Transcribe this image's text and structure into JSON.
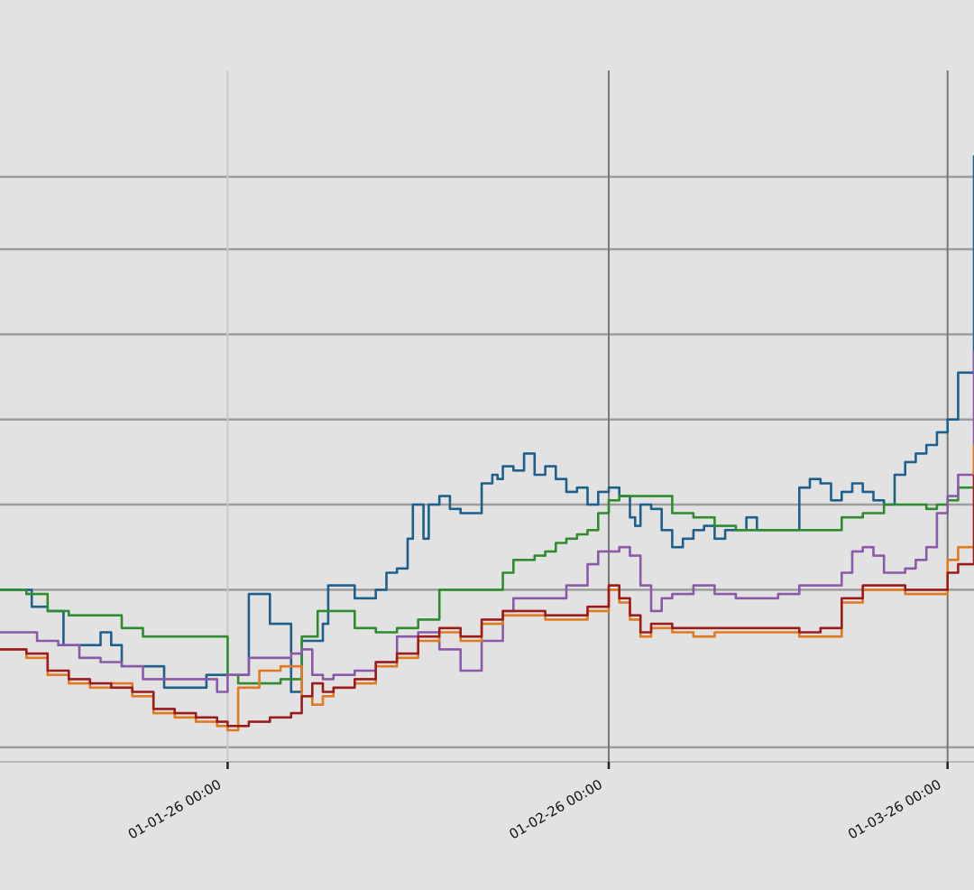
{
  "chart_data": {
    "type": "line",
    "title": "",
    "xlabel": "",
    "ylabel": "",
    "grid": true,
    "legend": "none",
    "x_unit": "day",
    "x_range": [
      -21.5,
      70.5
    ],
    "y_range": [
      0,
      8.1
    ],
    "x_ticks": [
      {
        "x": 0,
        "label": "01-01-26 00:00"
      },
      {
        "x": 36,
        "label": "01-02-26 00:00"
      },
      {
        "x": 68,
        "label": "01-03-26 00:00"
      }
    ],
    "y_gridlines": [
      0.15,
      2.0,
      3.0,
      4.0,
      5.0,
      6.0,
      6.85
    ],
    "y_tick_labels": [],
    "series": [
      {
        "name": "blue",
        "color": "#1f5f8b",
        "x": [
          -21.5,
          -19,
          -18.5,
          -17,
          -15.5,
          -13,
          -12,
          -11,
          -10,
          -8,
          -7,
          -6,
          -4,
          -2,
          -1,
          0.5,
          2,
          3,
          4,
          6,
          7,
          8,
          9,
          9.5,
          11,
          12,
          14,
          15,
          16,
          17,
          17.5,
          18.5,
          19,
          20,
          21,
          22,
          24,
          25,
          25.5,
          26,
          27,
          28,
          29,
          30,
          31,
          32,
          33,
          34,
          35,
          36,
          37,
          38,
          38.5,
          39,
          40,
          41,
          42,
          43,
          44,
          45,
          46,
          47,
          48,
          49,
          50,
          51,
          53,
          54,
          55,
          56,
          57,
          58,
          59,
          60,
          61,
          62,
          63,
          64,
          65,
          66,
          67,
          68,
          69,
          70.5
        ],
        "y": [
          2.0,
          2.0,
          1.8,
          1.75,
          1.35,
          1.35,
          1.5,
          1.35,
          1.1,
          1.1,
          1.1,
          0.85,
          0.85,
          1.0,
          1.0,
          1.0,
          1.95,
          1.95,
          1.6,
          0.8,
          1.4,
          1.4,
          1.6,
          2.05,
          2.05,
          1.9,
          2.0,
          2.2,
          2.25,
          2.6,
          3.0,
          2.6,
          3.0,
          3.1,
          2.95,
          2.9,
          3.25,
          3.35,
          3.3,
          3.45,
          3.4,
          3.6,
          3.35,
          3.45,
          3.3,
          3.15,
          3.2,
          3.0,
          3.15,
          3.2,
          3.1,
          2.85,
          2.75,
          3.0,
          2.95,
          2.7,
          2.5,
          2.6,
          2.7,
          2.75,
          2.6,
          2.7,
          2.7,
          2.85,
          2.7,
          2.7,
          2.7,
          3.2,
          3.3,
          3.25,
          3.05,
          3.15,
          3.25,
          3.15,
          3.05,
          3.0,
          3.35,
          3.5,
          3.6,
          3.7,
          3.85,
          4.0,
          4.55,
          7.1
        ]
      },
      {
        "name": "green",
        "color": "#2e8b2e",
        "x": [
          -21.5,
          -20,
          -19,
          -17,
          -15,
          -12,
          -10,
          -8,
          -6,
          -4,
          -2,
          0,
          1,
          3,
          5,
          7,
          8.5,
          10,
          12,
          14,
          16,
          18,
          20,
          22,
          25,
          26,
          27,
          29,
          30,
          31,
          32,
          33,
          34,
          35,
          36,
          37,
          38,
          40,
          42,
          44,
          46,
          48,
          50,
          52,
          54,
          56,
          58,
          60,
          62,
          64,
          65,
          66,
          67,
          68,
          69,
          70.5
        ],
        "y": [
          2.0,
          2.0,
          1.95,
          1.75,
          1.7,
          1.7,
          1.55,
          1.45,
          1.45,
          1.45,
          1.45,
          1.0,
          0.9,
          0.9,
          0.95,
          1.45,
          1.75,
          1.75,
          1.55,
          1.5,
          1.55,
          1.65,
          2.0,
          2.0,
          2.0,
          2.2,
          2.35,
          2.4,
          2.45,
          2.55,
          2.6,
          2.65,
          2.7,
          2.9,
          3.05,
          3.1,
          3.1,
          3.1,
          2.9,
          2.85,
          2.75,
          2.7,
          2.7,
          2.7,
          2.7,
          2.7,
          2.85,
          2.9,
          3.0,
          3.0,
          3.0,
          2.95,
          3.0,
          3.05,
          3.2,
          3.2
        ]
      },
      {
        "name": "purple",
        "color": "#8a5aa8",
        "x": [
          -21.5,
          -19,
          -18,
          -16,
          -14,
          -12,
          -10,
          -8,
          -6,
          -4,
          -2,
          -1,
          0,
          2,
          4,
          6,
          7,
          8,
          9,
          10,
          12,
          14,
          16,
          18,
          20,
          22,
          24,
          26,
          27,
          28,
          30,
          32,
          34,
          35,
          36,
          37,
          38,
          39,
          40,
          41,
          42,
          44,
          46,
          48,
          50,
          52,
          54,
          56,
          58,
          59,
          60,
          61,
          62,
          64,
          65,
          66,
          67,
          68,
          69,
          70.5
        ],
        "y": [
          1.5,
          1.5,
          1.4,
          1.35,
          1.2,
          1.15,
          1.1,
          0.95,
          0.95,
          0.95,
          0.95,
          0.8,
          1.0,
          1.2,
          1.2,
          1.25,
          1.3,
          1.0,
          0.95,
          1.0,
          1.05,
          1.15,
          1.45,
          1.5,
          1.3,
          1.05,
          1.4,
          1.75,
          1.9,
          1.9,
          1.9,
          2.05,
          2.3,
          2.45,
          2.45,
          2.5,
          2.4,
          2.05,
          1.75,
          1.9,
          1.95,
          2.05,
          1.95,
          1.9,
          1.9,
          1.95,
          2.05,
          2.05,
          2.2,
          2.45,
          2.5,
          2.4,
          2.2,
          2.25,
          2.35,
          2.5,
          2.9,
          3.1,
          3.35,
          4.8
        ]
      },
      {
        "name": "orange",
        "color": "#e07a1f",
        "x": [
          -21.5,
          -19,
          -17,
          -15,
          -13,
          -11,
          -9,
          -7,
          -5,
          -3,
          -1,
          0,
          1,
          3,
          5,
          7,
          8,
          9,
          10,
          12,
          14,
          16,
          18,
          20,
          22,
          24,
          26,
          28,
          30,
          32,
          34,
          36,
          37,
          38,
          39,
          40,
          42,
          44,
          46,
          48,
          50,
          52,
          54,
          56,
          58,
          60,
          62,
          64,
          66,
          68,
          69,
          70.5
        ],
        "y": [
          1.3,
          1.2,
          1.0,
          0.9,
          0.85,
          0.9,
          0.75,
          0.55,
          0.5,
          0.45,
          0.4,
          0.35,
          0.85,
          1.05,
          1.1,
          0.75,
          0.65,
          0.75,
          0.85,
          0.9,
          1.1,
          1.2,
          1.4,
          1.5,
          1.4,
          1.6,
          1.7,
          1.7,
          1.65,
          1.65,
          1.75,
          2.0,
          1.85,
          1.65,
          1.45,
          1.55,
          1.5,
          1.45,
          1.5,
          1.5,
          1.5,
          1.5,
          1.45,
          1.45,
          1.85,
          2.0,
          2.0,
          1.95,
          1.95,
          2.35,
          2.5,
          3.7
        ]
      },
      {
        "name": "red",
        "color": "#9b1c1c",
        "x": [
          -21.5,
          -19,
          -17,
          -15,
          -13,
          -11,
          -9,
          -7,
          -5,
          -3,
          -1,
          0,
          2,
          4,
          6,
          7,
          8,
          9,
          10,
          12,
          14,
          16,
          18,
          20,
          22,
          24,
          26,
          28,
          30,
          32,
          34,
          36,
          37,
          38,
          39,
          40,
          42,
          44,
          46,
          48,
          50,
          52,
          54,
          56,
          58,
          60,
          62,
          64,
          66,
          68,
          69,
          70.5
        ],
        "y": [
          1.3,
          1.25,
          1.05,
          0.95,
          0.9,
          0.85,
          0.8,
          0.6,
          0.55,
          0.5,
          0.45,
          0.4,
          0.45,
          0.5,
          0.55,
          0.75,
          0.9,
          0.8,
          0.85,
          0.95,
          1.15,
          1.25,
          1.45,
          1.55,
          1.45,
          1.65,
          1.75,
          1.75,
          1.7,
          1.7,
          1.8,
          2.05,
          1.9,
          1.7,
          1.5,
          1.6,
          1.55,
          1.55,
          1.55,
          1.55,
          1.55,
          1.55,
          1.5,
          1.55,
          1.9,
          2.05,
          2.05,
          2.0,
          2.0,
          2.2,
          2.3,
          3.35
        ]
      }
    ]
  }
}
